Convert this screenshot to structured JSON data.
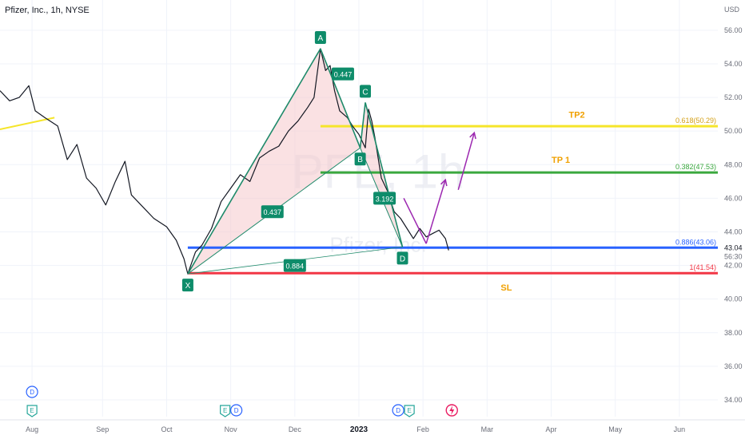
{
  "header": {
    "title": "Pfizer, Inc., 1h, NYSE",
    "currency": "USD"
  },
  "watermark": {
    "ticker": "PFE, 1h",
    "company": "Pfizer, Inc."
  },
  "chart_data": {
    "type": "line",
    "title": "Pfizer, Inc., 1h, NYSE",
    "ylabel": "USD",
    "xlabel": "",
    "ylim": [
      33,
      57.8
    ],
    "x_range": [
      0,
      11.2
    ],
    "grid": true,
    "y_ticks": [
      34,
      36,
      38,
      40,
      42,
      44,
      46,
      48,
      50,
      52,
      54,
      56
    ],
    "y_tick_labels": [
      "34.00",
      "36.00",
      "38.00",
      "40.00",
      "42.00",
      "44.00",
      "46.00",
      "48.00",
      "50.00",
      "52.00",
      "54.00",
      "56.00"
    ],
    "x_ticks": [
      {
        "label": "Aug",
        "x": 0.5
      },
      {
        "label": "Sep",
        "x": 1.6
      },
      {
        "label": "Oct",
        "x": 2.6
      },
      {
        "label": "Nov",
        "x": 3.6
      },
      {
        "label": "Dec",
        "x": 4.6
      },
      {
        "label": "2023",
        "x": 5.6
      },
      {
        "label": "Feb",
        "x": 6.6
      },
      {
        "label": "Mar",
        "x": 7.6
      },
      {
        "label": "Apr",
        "x": 8.6
      },
      {
        "label": "May",
        "x": 9.6
      },
      {
        "label": "Jun",
        "x": 10.6
      }
    ],
    "price_path": [
      [
        0,
        52.4
      ],
      [
        0.15,
        51.8
      ],
      [
        0.3,
        52.0
      ],
      [
        0.45,
        52.7
      ],
      [
        0.55,
        51.2
      ],
      [
        0.7,
        50.8
      ],
      [
        0.9,
        50.3
      ],
      [
        1.05,
        48.3
      ],
      [
        1.2,
        49.2
      ],
      [
        1.35,
        47.2
      ],
      [
        1.5,
        46.6
      ],
      [
        1.65,
        45.6
      ],
      [
        1.8,
        47.0
      ],
      [
        1.95,
        48.2
      ],
      [
        2.05,
        46.2
      ],
      [
        2.2,
        45.6
      ],
      [
        2.4,
        44.8
      ],
      [
        2.6,
        44.3
      ],
      [
        2.75,
        43.5
      ],
      [
        2.87,
        42.4
      ],
      [
        2.93,
        41.5
      ],
      [
        3.05,
        42.8
      ],
      [
        3.15,
        43.2
      ],
      [
        3.3,
        44.2
      ],
      [
        3.45,
        45.8
      ],
      [
        3.6,
        46.6
      ],
      [
        3.75,
        47.4
      ],
      [
        3.9,
        47.0
      ],
      [
        4.05,
        48.4
      ],
      [
        4.2,
        48.8
      ],
      [
        4.35,
        49.1
      ],
      [
        4.5,
        50.0
      ],
      [
        4.65,
        50.6
      ],
      [
        4.8,
        51.4
      ],
      [
        4.9,
        52.0
      ],
      [
        5.0,
        54.9
      ],
      [
        5.08,
        53.6
      ],
      [
        5.15,
        53.9
      ],
      [
        5.22,
        52.4
      ],
      [
        5.3,
        51.2
      ],
      [
        5.42,
        50.8
      ],
      [
        5.5,
        50.3
      ],
      [
        5.6,
        49.8
      ],
      [
        5.7,
        49.0
      ],
      [
        5.75,
        51.3
      ],
      [
        5.8,
        50.6
      ],
      [
        5.85,
        49.6
      ],
      [
        5.95,
        47.2
      ],
      [
        6.05,
        46.4
      ],
      [
        6.15,
        45.2
      ],
      [
        6.25,
        44.8
      ],
      [
        6.35,
        44.2
      ],
      [
        6.45,
        43.6
      ],
      [
        6.55,
        44.2
      ],
      [
        6.65,
        43.7
      ],
      [
        6.75,
        43.9
      ],
      [
        6.85,
        44.1
      ],
      [
        6.95,
        43.6
      ],
      [
        7.0,
        42.9
      ]
    ],
    "series": [
      {
        "values_ref": "price_path"
      }
    ],
    "harmonic_pattern": {
      "points": [
        {
          "label": "X",
          "x": 2.93,
          "y": 41.5
        },
        {
          "label": "A",
          "x": 5.0,
          "y": 54.9
        },
        {
          "label": "B",
          "x": 5.62,
          "y": 49.0
        },
        {
          "label": "C",
          "x": 5.7,
          "y": 51.7
        },
        {
          "label": "D",
          "x": 6.28,
          "y": 43.1
        }
      ],
      "ratios": [
        {
          "text": "0.447",
          "x": 5.35,
          "y": 53.4
        },
        {
          "text": "0.437",
          "x": 4.25,
          "y": 45.2
        },
        {
          "text": "0.884",
          "x": 4.6,
          "y": 42.0
        },
        {
          "text": "3.192",
          "x": 6.0,
          "y": 46.0
        }
      ]
    },
    "levels": [
      {
        "name": "TP2",
        "value": 50.29,
        "label": "0.618(50.29)",
        "color": "#f5e52a",
        "x_start": 5.0
      },
      {
        "name": "TP 1",
        "value": 47.53,
        "label": "0.382(47.53)",
        "color": "#3aa83e",
        "x_start": 5.0
      },
      {
        "name": "",
        "value": 43.06,
        "label": "0.886(43.06)",
        "color": "#2962ff",
        "x_start": 2.93
      },
      {
        "name": "SL",
        "value": 41.54,
        "label": "1(41.54)",
        "color": "#f23645",
        "x_start": 2.93
      }
    ],
    "level_names_x": [
      {
        "text": "TP2",
        "x": 9.0,
        "y": 50.8,
        "color": "#f0a000"
      },
      {
        "text": "TP 1",
        "x": 8.75,
        "y": 48.1,
        "color": "#f0a000"
      },
      {
        "text": "SL",
        "x": 7.9,
        "y": 40.5,
        "color": "#f0a000"
      }
    ],
    "arrows": [
      {
        "from": [
          6.3,
          46.0
        ],
        "to": [
          6.65,
          43.3
        ],
        "kind": "v-down"
      },
      {
        "from": [
          6.65,
          43.3
        ],
        "to": [
          6.95,
          47.1
        ],
        "kind": "v-up"
      },
      {
        "from": [
          7.15,
          46.5
        ],
        "to": [
          7.4,
          49.9
        ],
        "kind": "up"
      }
    ],
    "price_axis_current": {
      "price": "43.04",
      "countdown": "56:30",
      "value": 43.04
    },
    "events": [
      {
        "x": 0.5,
        "markers": [
          "D",
          "E"
        ]
      },
      {
        "x": 3.6,
        "markers": [
          "E",
          "D"
        ]
      },
      {
        "x": 6.3,
        "markers": [
          "D",
          "E"
        ]
      },
      {
        "x": 7.05,
        "markers": [
          "dividend-flash"
        ]
      }
    ]
  },
  "colors": {
    "price": "#131722",
    "pattern_line": "#1e8a6a",
    "pattern_fill": "#f6c8cc",
    "marker_bg": "#0e8c6a",
    "arrow": "#9c27b0",
    "event_blue": "#2962ff",
    "event_green": "#26a69a",
    "event_pink": "#e91e63"
  }
}
